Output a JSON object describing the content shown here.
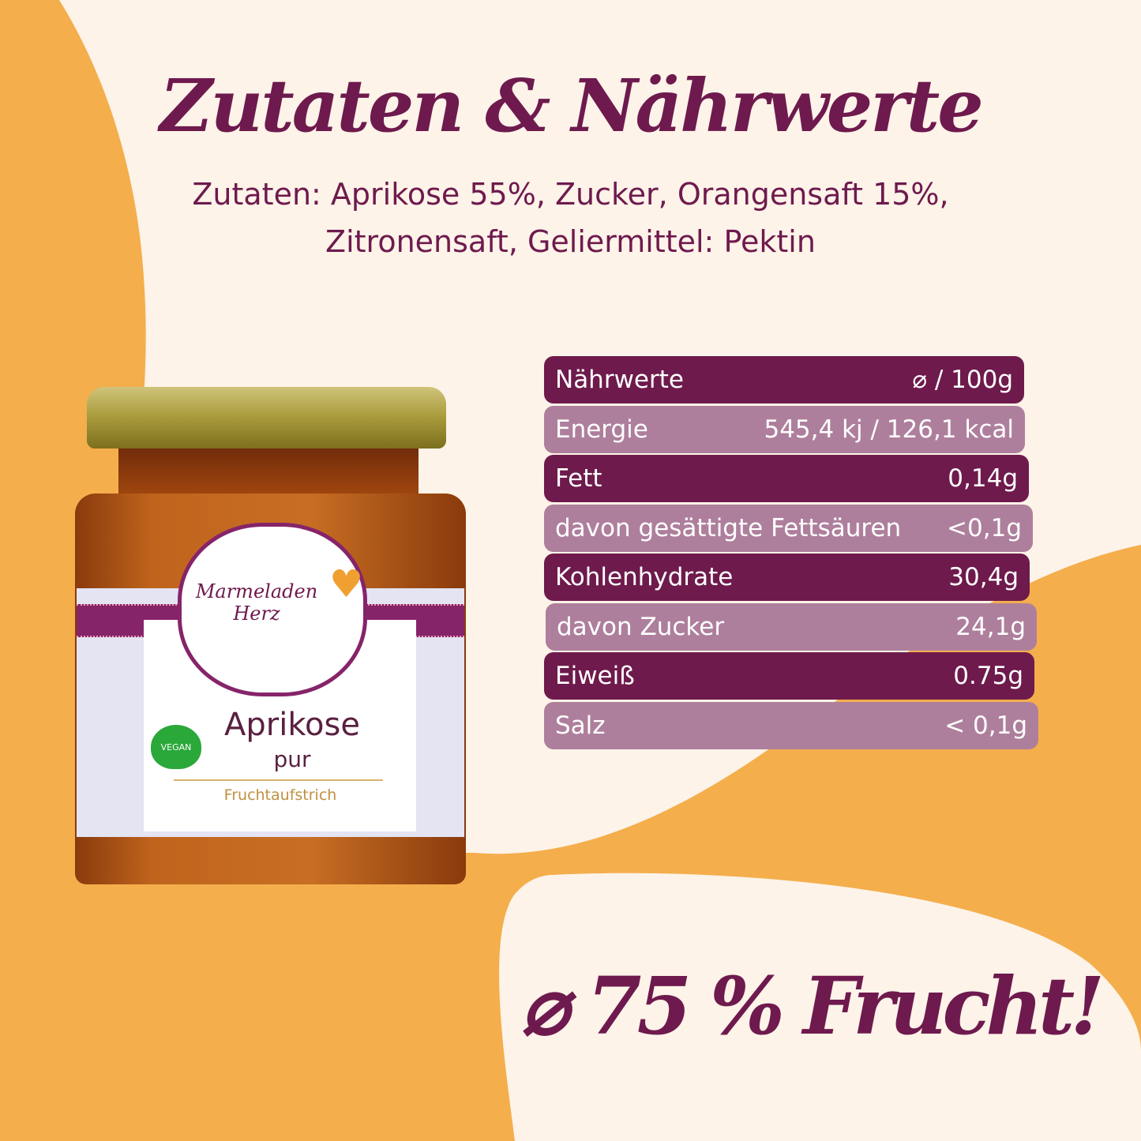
{
  "colors": {
    "background_orange": "#f4ae4c",
    "background_cream": "#fdf3e8",
    "brand_purple": "#6e1a4e",
    "row_dark": "#6e1a4c",
    "row_light": "#ae7f9c"
  },
  "title": "Zutaten & Nährwerte",
  "ingredients": {
    "line1": "Zutaten: Aprikose 55%, Zucker, Orangensaft 15%,",
    "line2": "Zitronensaft, Geliermittel: Pektin"
  },
  "nutrition": {
    "header": {
      "label": "Nährwerte",
      "value": "⌀ / 100g"
    },
    "rows": [
      {
        "label": "Energie",
        "value": "545,4 kj / 126,1 kcal"
      },
      {
        "label": "Fett",
        "value": "0,14g"
      },
      {
        "label": "davon gesättigte Fettsäuren",
        "value": "<0,1g"
      },
      {
        "label": "Kohlenhydrate",
        "value": "30,4g"
      },
      {
        "label": "davon Zucker",
        "value": "24,1g"
      },
      {
        "label": "Eiweiß",
        "value": "0.75g"
      },
      {
        "label": "Salz",
        "value": "< 0,1g"
      }
    ]
  },
  "jar": {
    "brand_line1": "Marmeladen",
    "brand_line2": "Herz",
    "product": "Aprikose",
    "variant": "pur",
    "type": "Fruchtaufstrich",
    "badge": "VEGAN"
  },
  "fruit_claim": "⌀ 75 % Frucht!"
}
